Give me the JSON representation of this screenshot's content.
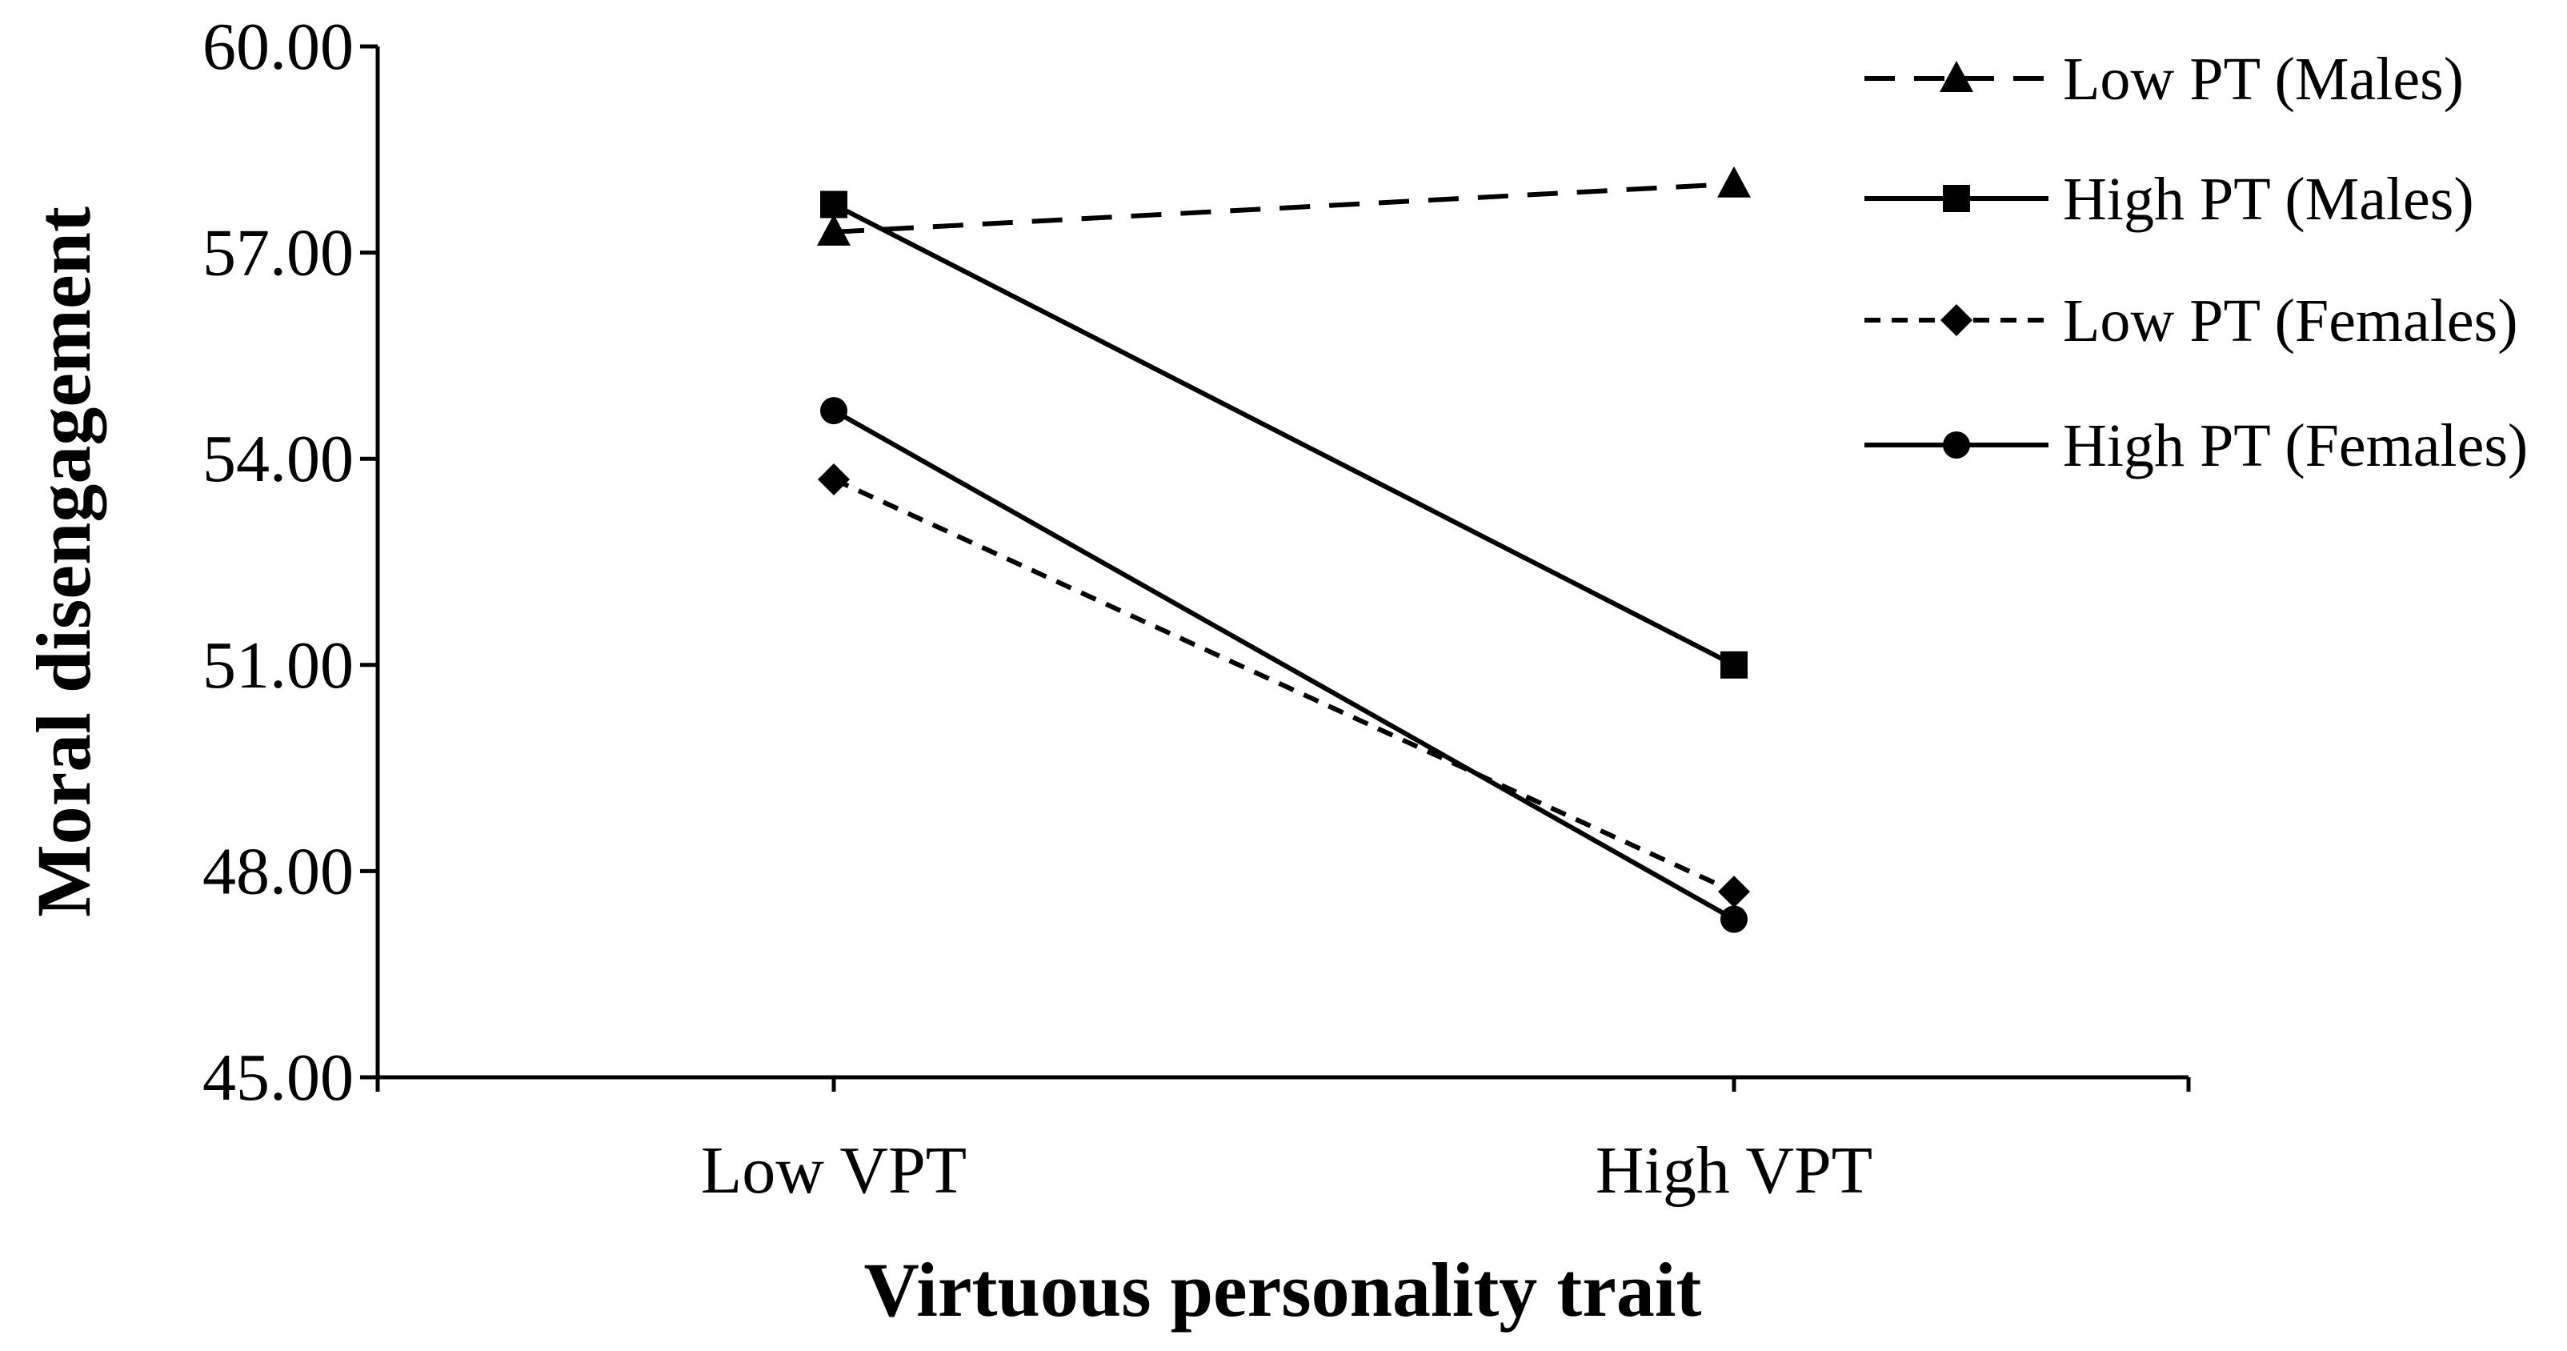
{
  "chart_data": {
    "type": "line",
    "title": "",
    "xlabel": "Virtuous personality trait",
    "ylabel": "Moral disengagement",
    "categories": [
      "Low VPT",
      "High VPT"
    ],
    "ylim": [
      45,
      60
    ],
    "yticks": [
      "45.00",
      "48.00",
      "51.00",
      "54.00",
      "57.00",
      "60.00"
    ],
    "ytick_values": [
      45,
      48,
      51,
      54,
      57,
      60
    ],
    "grid": false,
    "legend_position": "top-right",
    "series": [
      {
        "name": "Low PT (Males)",
        "values": [
          57.3,
          58.0
        ],
        "marker": "triangle",
        "line_style": "dashed",
        "color": "#000000"
      },
      {
        "name": "High PT (Males)",
        "values": [
          57.7,
          51.0
        ],
        "marker": "square",
        "line_style": "solid",
        "color": "#000000"
      },
      {
        "name": "Low PT (Females)",
        "values": [
          53.7,
          47.7
        ],
        "marker": "diamond",
        "line_style": "short-dashed",
        "color": "#000000"
      },
      {
        "name": "High PT (Females)",
        "values": [
          54.7,
          47.3
        ],
        "marker": "circle",
        "line_style": "solid",
        "color": "#000000"
      }
    ]
  }
}
